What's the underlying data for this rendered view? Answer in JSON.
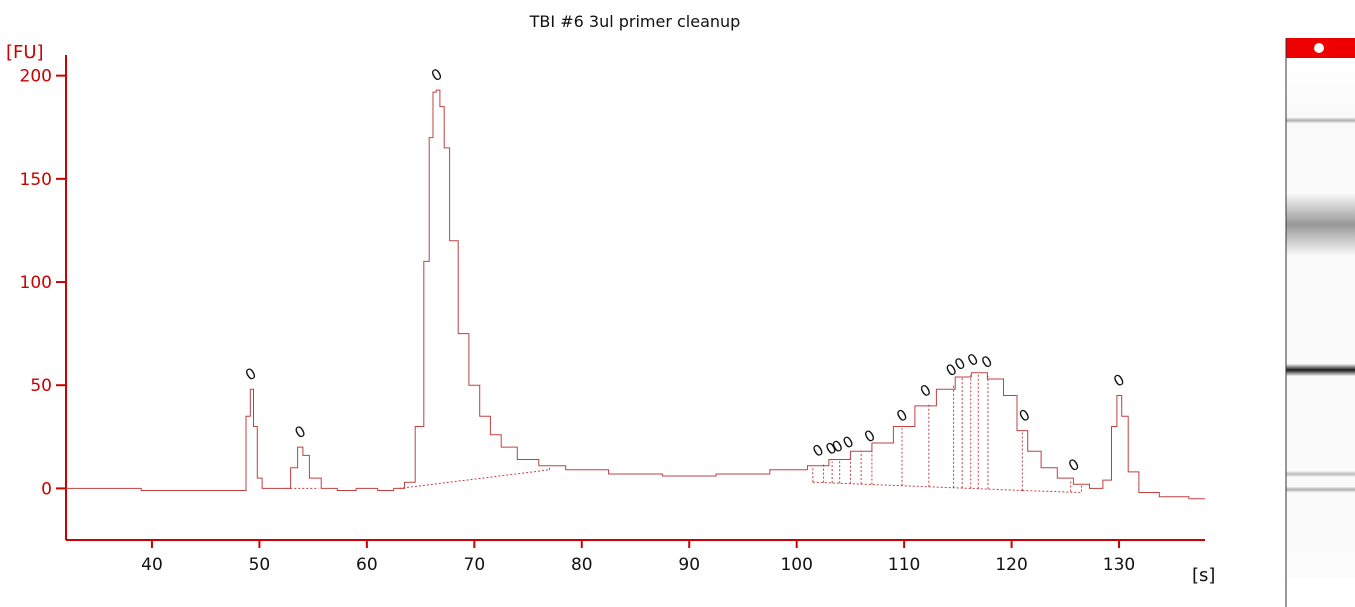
{
  "chart_data": {
    "type": "line",
    "title": "TBI #6 3ul primer cleanup",
    "xlabel": "[s]",
    "ylabel": "[FU]",
    "xlim": [
      32,
      138
    ],
    "ylim": [
      -25,
      210
    ],
    "xticks": [
      "40",
      "50",
      "60",
      "70",
      "80",
      "90",
      "100",
      "110",
      "120",
      "130"
    ],
    "yticks": [
      "0",
      "50",
      "100",
      "150",
      "200"
    ],
    "grid": false,
    "legend": "none",
    "line_color": "#c04040",
    "axis_color": "#cc0000",
    "series": [
      {
        "x": [
          32,
          38,
          40,
          45,
          48.5,
          49.0,
          49.3,
          49.6,
          50.0,
          50.5,
          52.5,
          53.3,
          53.8,
          54.3,
          55.0,
          56.5,
          58,
          60,
          62,
          63,
          64,
          65,
          65.6,
          66.0,
          66.3,
          66.6,
          67.0,
          67.4,
          68.0,
          69.0,
          70.0,
          71.0,
          72.0,
          73.0,
          75.0,
          77.0,
          80.0,
          85.0,
          90.0,
          95.0,
          100.0,
          102.0,
          104.0,
          106.0,
          108.0,
          110.0,
          112.0,
          114.0,
          115.5,
          117.0,
          118.5,
          120.0,
          121.0,
          122.0,
          123.5,
          125.0,
          126.5,
          128.0,
          129.0,
          129.6,
          130.0,
          130.5,
          131.2,
          132.5,
          135.0,
          138.0
        ],
        "y": [
          0,
          0,
          -1,
          -1,
          -1,
          35,
          48,
          30,
          5,
          0,
          0,
          10,
          20,
          16,
          5,
          0,
          -1,
          0,
          -1,
          0,
          3,
          30,
          110,
          170,
          192,
          193,
          185,
          165,
          120,
          75,
          50,
          35,
          26,
          20,
          14,
          11,
          9,
          7,
          6,
          7,
          9,
          11,
          14,
          18,
          22,
          30,
          40,
          48,
          54,
          56,
          53,
          45,
          28,
          18,
          10,
          5,
          2,
          0,
          4,
          30,
          45,
          35,
          8,
          -2,
          -4,
          -5
        ]
      }
    ],
    "peak_labels": [
      {
        "x": 49.2,
        "y": 48,
        "label": "0"
      },
      {
        "x": 53.8,
        "y": 20,
        "label": "0"
      },
      {
        "x": 66.5,
        "y": 193,
        "label": "0"
      },
      {
        "x": 102.0,
        "y": 11,
        "label": "0"
      },
      {
        "x": 103.2,
        "y": 12,
        "label": "0"
      },
      {
        "x": 103.8,
        "y": 13,
        "label": "0"
      },
      {
        "x": 104.8,
        "y": 15,
        "label": "0"
      },
      {
        "x": 106.8,
        "y": 18,
        "label": "0"
      },
      {
        "x": 109.8,
        "y": 28,
        "label": "0"
      },
      {
        "x": 112.0,
        "y": 40,
        "label": "0"
      },
      {
        "x": 114.4,
        "y": 50,
        "label": "0"
      },
      {
        "x": 115.2,
        "y": 53,
        "label": "0"
      },
      {
        "x": 116.4,
        "y": 55,
        "label": "0"
      },
      {
        "x": 117.7,
        "y": 54,
        "label": "0"
      },
      {
        "x": 121.2,
        "y": 28,
        "label": "0"
      },
      {
        "x": 125.8,
        "y": 4,
        "label": "0"
      },
      {
        "x": 130.0,
        "y": 45,
        "label": "0"
      }
    ],
    "gel_bands": [
      {
        "position": 0.12,
        "intensity": 0.35
      },
      {
        "position": 0.32,
        "intensity": 0.45
      },
      {
        "position": 0.6,
        "intensity": 1.0
      },
      {
        "position": 0.8,
        "intensity": 0.3
      },
      {
        "position": 0.83,
        "intensity": 0.35
      }
    ],
    "gel_marker_color": "#ee0000"
  }
}
